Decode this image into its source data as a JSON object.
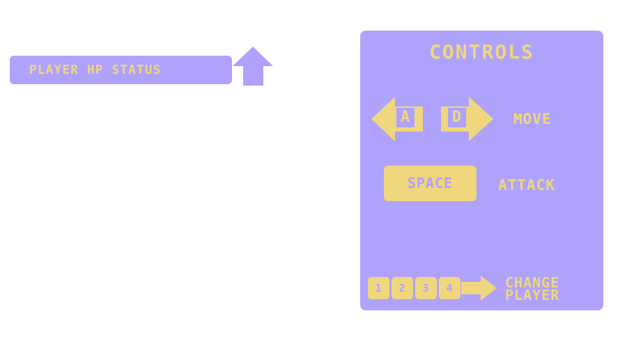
{
  "hud": {
    "hp_label": "PLAYER HP STATUS"
  },
  "controls": {
    "title": "CONTROLS",
    "left_key": "A",
    "right_key": "D",
    "move_label": "MOVE",
    "space_key": "SPACE",
    "attack_label": "ATTACK",
    "number_keys": [
      "1",
      "2",
      "3",
      "4"
    ],
    "change_label_line1": "CHANGE",
    "change_label_line2": "PLAYER"
  },
  "colors": {
    "panel": "#aea2fc",
    "accent": "#f0d67c",
    "background": "#ffffff"
  },
  "icons": [
    "up-arrow-icon",
    "left-arrow-icon",
    "right-arrow-icon"
  ]
}
